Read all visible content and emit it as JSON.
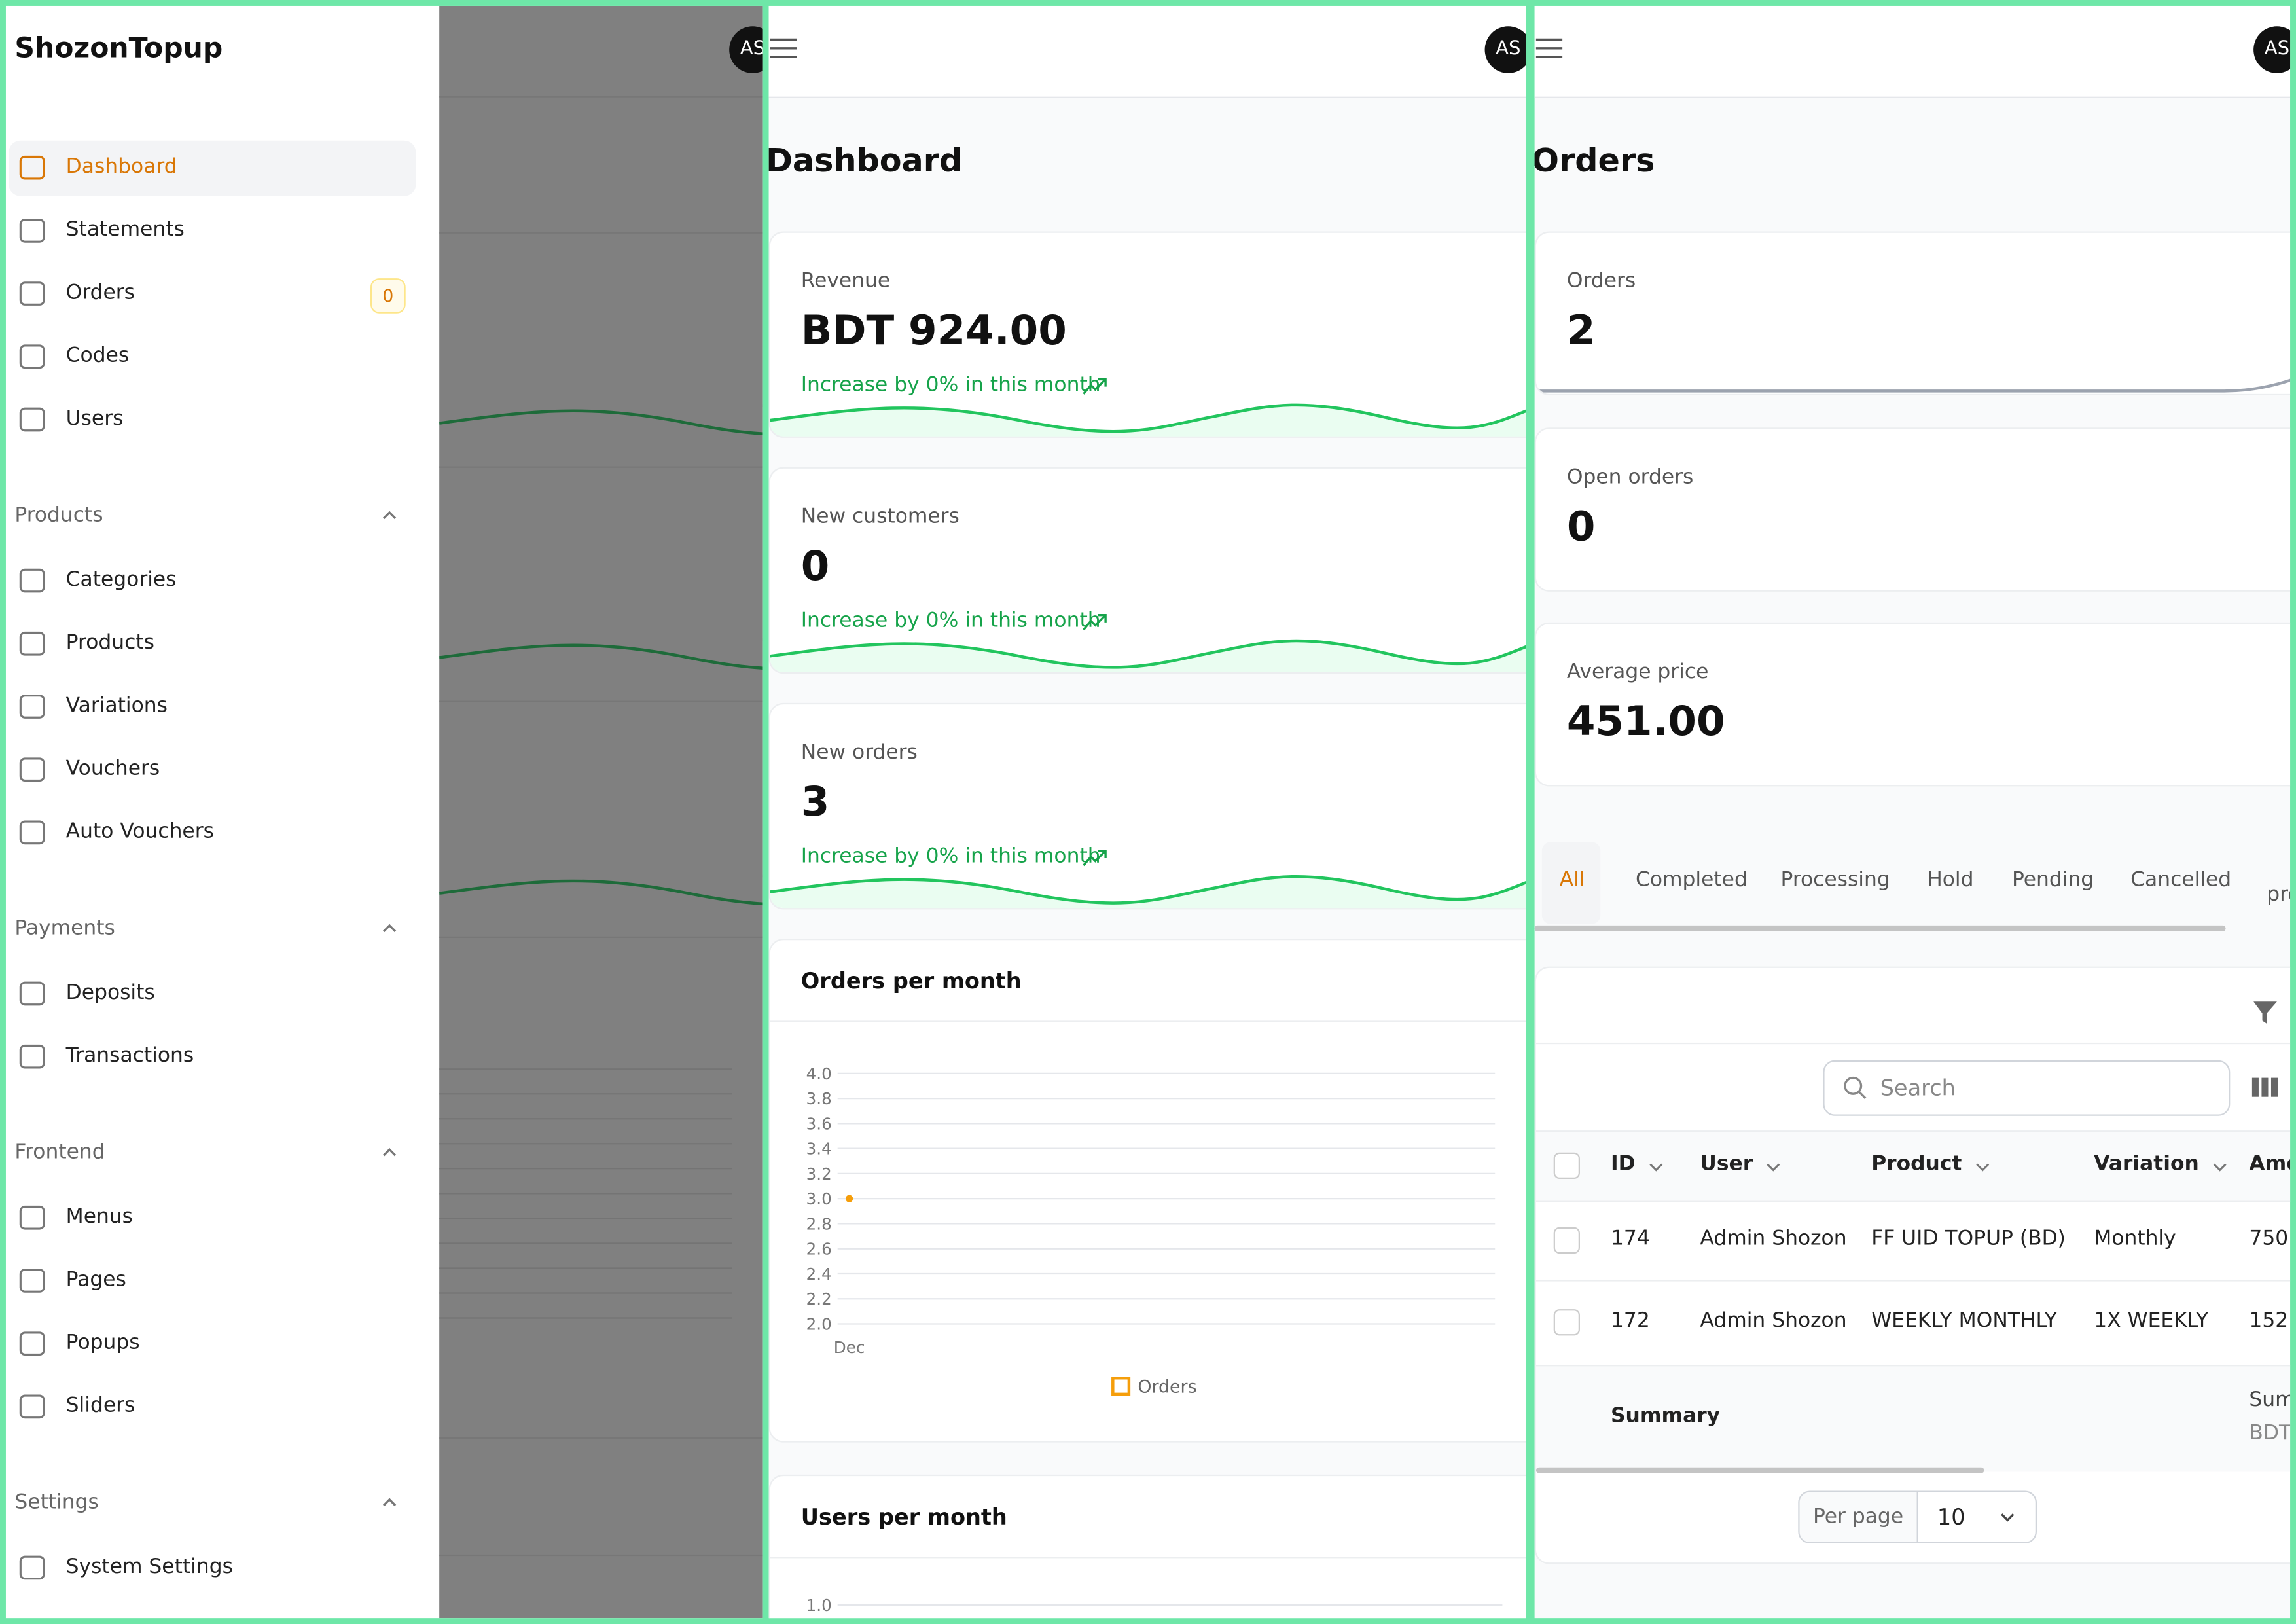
{
  "avatar": "AS",
  "sidebar": {
    "brand": "ShozonTopup",
    "items": [
      {
        "label": "Dashboard"
      },
      {
        "label": "Statements"
      },
      {
        "label": "Orders",
        "badge": 0
      },
      {
        "label": "Codes"
      },
      {
        "label": "Users"
      }
    ],
    "groups": [
      {
        "title": "Products",
        "items": [
          {
            "label": "Categories"
          },
          {
            "label": "Products"
          },
          {
            "label": "Variations"
          },
          {
            "label": "Vouchers"
          },
          {
            "label": "Auto Vouchers"
          }
        ]
      },
      {
        "title": "Payments",
        "items": [
          {
            "label": "Deposits"
          },
          {
            "label": "Transactions"
          }
        ]
      },
      {
        "title": "Frontend",
        "items": [
          {
            "label": "Menus"
          },
          {
            "label": "Pages"
          },
          {
            "label": "Popups"
          },
          {
            "label": "Sliders"
          }
        ]
      },
      {
        "title": "Settings",
        "items": [
          {
            "label": "System Settings"
          }
        ]
      }
    ]
  },
  "dashboard": {
    "title": "Dashboard",
    "stats": [
      {
        "label": "Revenue",
        "value": "BDT 924.00",
        "trend": "Increase by 0% in this month"
      },
      {
        "label": "New customers",
        "value": "0",
        "trend": "Increase by 0% in this month"
      },
      {
        "label": "New orders",
        "value": "3",
        "trend": "Increase by 0% in this month"
      }
    ],
    "orders_chart": {
      "title": "Orders per month",
      "type": "line",
      "categories": [
        "Dec"
      ],
      "series": [
        {
          "name": "Orders",
          "color": "#f59e0b",
          "values": [
            3
          ]
        }
      ],
      "ylim": [
        2,
        4
      ],
      "yticks": [
        {
          "value": 2,
          "label": "2.0"
        },
        {
          "value": 2.2,
          "label": "2.2"
        },
        {
          "value": 2.4,
          "label": "2.4"
        },
        {
          "value": 2.6,
          "label": "2.6"
        },
        {
          "value": 2.8,
          "label": "2.8"
        },
        {
          "value": 3,
          "label": "3.0"
        },
        {
          "value": 3.2,
          "label": "3.2"
        },
        {
          "value": 3.4,
          "label": "3.4"
        },
        {
          "value": 3.6,
          "label": "3.6"
        },
        {
          "value": 3.8,
          "label": "3.8"
        },
        {
          "value": 4,
          "label": "4.0"
        }
      ],
      "grid": true
    },
    "users_chart": {
      "title": "Users per month",
      "yticks": [
        {
          "value": 1,
          "label": "1.0"
        }
      ]
    }
  },
  "orders": {
    "title": "Orders",
    "stats": [
      {
        "label": "Orders",
        "value": "2"
      },
      {
        "label": "Open orders",
        "value": "0"
      },
      {
        "label": "Average price",
        "value": "451.00"
      }
    ],
    "tabs": [
      "All",
      "Completed",
      "Processing",
      "Hold",
      "Pending",
      "Cancelled",
      "pro"
    ],
    "search": "Search",
    "columns": [
      "ID",
      "User",
      "Product",
      "Variation",
      "Amo"
    ],
    "rows": [
      [
        "174",
        "Admin Shozon",
        "FF UID TOPUP (BD)",
        "Monthly",
        "750."
      ],
      [
        "172",
        "Admin Shozon",
        "WEEKLY MONTHLY",
        "1X WEEKLY",
        "152."
      ]
    ],
    "summary": "Summary",
    "summary_cells": [
      "Sum",
      "BDT"
    ],
    "per_page_label": "Per page",
    "per_page": "10"
  }
}
